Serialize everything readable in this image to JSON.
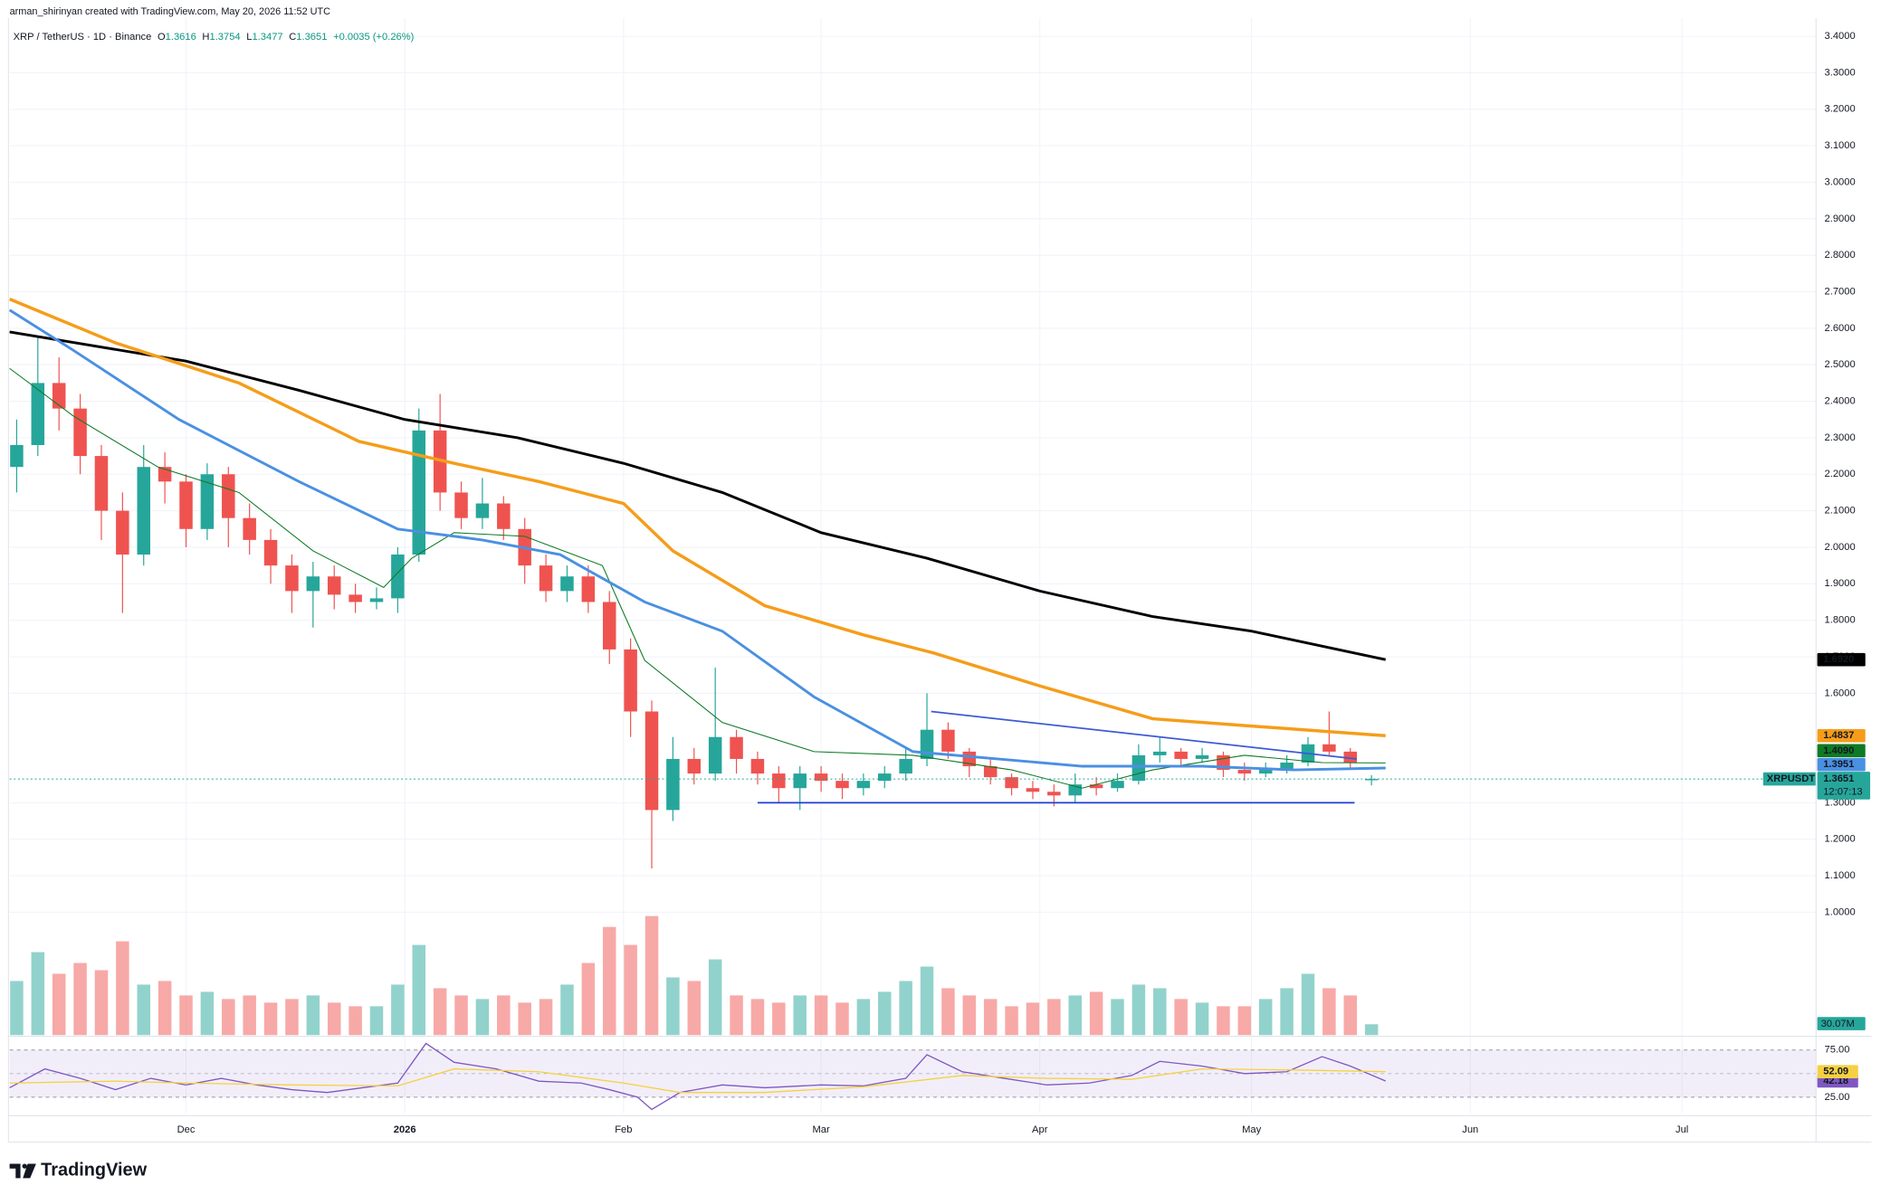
{
  "header": {
    "author_line": "arman_shirinyan created with TradingView.com, May 20, 2026 11:52 UTC",
    "symbol": "XRP / TetherUS · 1D · Binance",
    "ohlc": [
      {
        "key": "O",
        "value": "1.3616"
      },
      {
        "key": "H",
        "value": "1.3754"
      },
      {
        "key": "L",
        "value": "1.3477"
      },
      {
        "key": "C",
        "value": "1.3651"
      }
    ],
    "change": "+0.0035 (+0.26%)"
  },
  "chart_data": [
    {
      "type": "candlestick",
      "up_color": "#26a69a",
      "down_color": "#ef5350",
      "grid": true,
      "xlim": [
        -25,
        231
      ],
      "xticks": [
        {
          "value": 0,
          "label": "Dec"
        },
        {
          "value": 31,
          "label": "2026"
        },
        {
          "value": 62,
          "label": "Feb"
        },
        {
          "value": 90,
          "label": "Mar"
        },
        {
          "value": 121,
          "label": "Apr"
        },
        {
          "value": 151,
          "label": "May"
        },
        {
          "value": 182,
          "label": "Jun"
        },
        {
          "value": 212,
          "label": "Jul"
        }
      ],
      "ylim": [
        0.66,
        3.45
      ],
      "yticks": [
        {
          "value": 1.0,
          "label": "1.0000"
        },
        {
          "value": 1.1,
          "label": "1.1000"
        },
        {
          "value": 1.2,
          "label": "1.2000"
        },
        {
          "value": 1.3,
          "label": "1.3000"
        },
        {
          "value": 1.6,
          "label": "1.6000"
        },
        {
          "value": 1.7,
          "label": "1.7000"
        },
        {
          "value": 1.8,
          "label": "1.8000"
        },
        {
          "value": 1.9,
          "label": "1.9000"
        },
        {
          "value": 2.0,
          "label": "2.0000"
        },
        {
          "value": 2.1,
          "label": "2.1000"
        },
        {
          "value": 2.2,
          "label": "2.2000"
        },
        {
          "value": 2.3,
          "label": "2.3000"
        },
        {
          "value": 2.4,
          "label": "2.4000"
        },
        {
          "value": 2.5,
          "label": "2.5000"
        },
        {
          "value": 2.6,
          "label": "2.6000"
        },
        {
          "value": 2.7,
          "label": "2.7000"
        },
        {
          "value": 2.8,
          "label": "2.8000"
        },
        {
          "value": 2.9,
          "label": "2.9000"
        },
        {
          "value": 3.0,
          "label": "3.0000"
        },
        {
          "value": 3.1,
          "label": "3.1000"
        },
        {
          "value": 3.2,
          "label": "3.2000"
        },
        {
          "value": 3.3,
          "label": "3.3000"
        },
        {
          "value": 3.4,
          "label": "3.4000"
        }
      ],
      "x": [
        -24,
        -21,
        -18,
        -15,
        -12,
        -9,
        -6,
        -3,
        0,
        3,
        6,
        9,
        12,
        15,
        18,
        21,
        24,
        27,
        30,
        33,
        36,
        39,
        42,
        45,
        48,
        51,
        54,
        57,
        60,
        63,
        66,
        69,
        72,
        75,
        78,
        81,
        84,
        87,
        90,
        93,
        96,
        99,
        102,
        105,
        108,
        111,
        114,
        117,
        120,
        123,
        126,
        129,
        132,
        135,
        138,
        141,
        144,
        147,
        150,
        153,
        156,
        159,
        162,
        165,
        168
      ],
      "open": [
        2.22,
        2.28,
        2.45,
        2.38,
        2.25,
        2.1,
        1.98,
        2.22,
        2.18,
        2.05,
        2.2,
        2.08,
        2.02,
        1.95,
        1.88,
        1.92,
        1.87,
        1.85,
        1.86,
        1.98,
        2.32,
        2.15,
        2.08,
        2.12,
        2.05,
        1.95,
        1.88,
        1.92,
        1.85,
        1.72,
        1.55,
        1.28,
        1.42,
        1.38,
        1.48,
        1.42,
        1.38,
        1.34,
        1.38,
        1.36,
        1.34,
        1.36,
        1.38,
        1.42,
        1.5,
        1.44,
        1.4,
        1.37,
        1.34,
        1.33,
        1.32,
        1.35,
        1.34,
        1.36,
        1.43,
        1.44,
        1.42,
        1.43,
        1.39,
        1.38,
        1.39,
        1.41,
        1.46,
        1.44,
        1.3616
      ],
      "high": [
        2.35,
        2.58,
        2.52,
        2.42,
        2.28,
        2.15,
        2.28,
        2.26,
        2.2,
        2.23,
        2.22,
        2.12,
        2.05,
        1.98,
        1.96,
        1.95,
        1.9,
        1.89,
        2.0,
        2.38,
        2.42,
        2.18,
        2.19,
        2.14,
        2.08,
        1.98,
        1.95,
        1.95,
        1.88,
        1.75,
        1.58,
        1.48,
        1.45,
        1.67,
        1.5,
        1.44,
        1.4,
        1.4,
        1.4,
        1.38,
        1.38,
        1.4,
        1.45,
        1.6,
        1.52,
        1.45,
        1.42,
        1.38,
        1.36,
        1.35,
        1.38,
        1.37,
        1.38,
        1.46,
        1.48,
        1.45,
        1.45,
        1.44,
        1.41,
        1.41,
        1.43,
        1.48,
        1.55,
        1.45,
        1.3754
      ],
      "low": [
        2.15,
        2.25,
        2.32,
        2.2,
        2.02,
        1.82,
        1.95,
        2.12,
        2.0,
        2.02,
        2.0,
        1.98,
        1.9,
        1.82,
        1.78,
        1.83,
        1.82,
        1.83,
        1.82,
        1.96,
        2.1,
        2.05,
        2.05,
        2.02,
        1.9,
        1.85,
        1.85,
        1.82,
        1.68,
        1.48,
        1.12,
        1.25,
        1.35,
        1.36,
        1.38,
        1.35,
        1.3,
        1.28,
        1.33,
        1.31,
        1.32,
        1.34,
        1.36,
        1.4,
        1.42,
        1.37,
        1.35,
        1.32,
        1.31,
        1.29,
        1.3,
        1.32,
        1.33,
        1.35,
        1.41,
        1.4,
        1.41,
        1.37,
        1.36,
        1.37,
        1.38,
        1.4,
        1.43,
        1.39,
        1.3477
      ],
      "close": [
        2.28,
        2.45,
        2.38,
        2.25,
        2.1,
        1.98,
        2.22,
        2.18,
        2.05,
        2.2,
        2.08,
        2.02,
        1.95,
        1.88,
        1.92,
        1.87,
        1.85,
        1.86,
        1.98,
        2.32,
        2.15,
        2.08,
        2.12,
        2.05,
        1.95,
        1.88,
        1.92,
        1.85,
        1.72,
        1.55,
        1.28,
        1.42,
        1.38,
        1.48,
        1.42,
        1.38,
        1.34,
        1.38,
        1.36,
        1.34,
        1.36,
        1.38,
        1.42,
        1.5,
        1.44,
        1.4,
        1.37,
        1.34,
        1.33,
        1.32,
        1.35,
        1.34,
        1.36,
        1.43,
        1.44,
        1.42,
        1.43,
        1.39,
        1.38,
        1.39,
        1.41,
        1.46,
        1.44,
        1.41,
        1.3651
      ],
      "volume": {
        "values": [
          150,
          230,
          170,
          200,
          180,
          260,
          140,
          150,
          110,
          120,
          100,
          110,
          90,
          100,
          110,
          90,
          80,
          80,
          140,
          250,
          130,
          110,
          100,
          110,
          90,
          100,
          140,
          200,
          300,
          250,
          330,
          160,
          150,
          210,
          110,
          100,
          90,
          110,
          110,
          90,
          100,
          120,
          150,
          190,
          130,
          110,
          100,
          80,
          90,
          100,
          110,
          120,
          100,
          140,
          130,
          100,
          90,
          80,
          80,
          100,
          130,
          170,
          130,
          110,
          30.07
        ],
        "value_labels": [
          null,
          null,
          null,
          null,
          null,
          null,
          null,
          null,
          null,
          null,
          null,
          null,
          null,
          null,
          null,
          null,
          null,
          null,
          null,
          null,
          null,
          null,
          null,
          null,
          null,
          null,
          null,
          null,
          null,
          null,
          null,
          null,
          null,
          null,
          null,
          null,
          null,
          null,
          null,
          null,
          null,
          null,
          null,
          null,
          null,
          null,
          null,
          null,
          null,
          null,
          null,
          null,
          null,
          null,
          null,
          null,
          null,
          null,
          null,
          null,
          null,
          null,
          null,
          null,
          "30.07M"
        ]
      },
      "series": [
        {
          "color": "#000000",
          "width": 2.2,
          "x": [
            -25,
            0,
            16,
            31,
            47,
            62,
            76,
            90,
            105,
            121,
            137,
            151,
            170
          ],
          "values": [
            2.59,
            2.51,
            2.43,
            2.35,
            2.3,
            2.23,
            2.15,
            2.04,
            1.97,
            1.88,
            1.81,
            1.77,
            1.692
          ],
          "value_labels": [
            null,
            null,
            null,
            null,
            null,
            null,
            null,
            null,
            null,
            null,
            null,
            null,
            "1.6920"
          ]
        },
        {
          "color": "#f59d1a",
          "width": 2.6,
          "x": [
            -25,
            -10,
            7.5,
            24.5,
            38,
            50,
            62,
            69,
            82,
            96,
            106,
            121,
            137,
            151,
            170
          ],
          "values": [
            2.68,
            2.56,
            2.45,
            2.29,
            2.23,
            2.18,
            2.12,
            1.99,
            1.84,
            1.76,
            1.71,
            1.62,
            1.53,
            1.51,
            1.4837
          ],
          "value_labels": [
            null,
            null,
            null,
            null,
            null,
            null,
            null,
            null,
            null,
            null,
            null,
            null,
            null,
            null,
            "1.4837"
          ]
        },
        {
          "color": "#0e7a24",
          "width": 0.8,
          "x": [
            -25,
            -16,
            -4,
            7.5,
            18,
            28,
            32,
            38,
            48,
            59,
            65,
            76,
            89,
            103,
            117,
            127,
            137,
            150,
            161,
            170
          ],
          "values": [
            2.49,
            2.36,
            2.22,
            2.15,
            1.99,
            1.89,
            1.97,
            2.04,
            2.03,
            1.95,
            1.69,
            1.52,
            1.44,
            1.43,
            1.39,
            1.34,
            1.39,
            1.43,
            1.41,
            1.409
          ],
          "value_labels": [
            null,
            null,
            null,
            null,
            null,
            null,
            null,
            null,
            null,
            null,
            null,
            null,
            null,
            null,
            null,
            null,
            null,
            null,
            null,
            "1.4090"
          ]
        },
        {
          "color": "#4a90e2",
          "width": 2.2,
          "x": [
            -25,
            -16,
            -1,
            16,
            30,
            42,
            53,
            65,
            76,
            89,
            103,
            115,
            127,
            144,
            157,
            170
          ],
          "values": [
            2.65,
            2.54,
            2.35,
            2.18,
            2.05,
            2.02,
            1.98,
            1.85,
            1.77,
            1.59,
            1.44,
            1.42,
            1.4,
            1.4,
            1.39,
            1.3951
          ],
          "value_labels": [
            null,
            null,
            null,
            null,
            null,
            null,
            null,
            null,
            null,
            null,
            null,
            null,
            null,
            null,
            null,
            "1.3951"
          ]
        }
      ],
      "drawings": [
        {
          "color": "#3c5ad6",
          "x": [
            105.6,
            165.9
          ],
          "values": [
            1.55,
            1.42
          ]
        },
        {
          "color": "#1c3fd6",
          "x": [
            81,
            165.6
          ],
          "values": [
            1.3,
            1.3
          ]
        }
      ],
      "last_price": {
        "symbol": "XRPUSDT",
        "value_label": "1.3651",
        "countdown": "12:07:13",
        "color": "#26a69a"
      }
    },
    {
      "type": "line",
      "ylim": [
        8,
        87
      ],
      "yticks": [
        {
          "value": 75,
          "label": "75.00"
        },
        {
          "value": 25,
          "label": "25.00"
        }
      ],
      "midline": 50,
      "band_color": "#7e57c2",
      "series": [
        {
          "color": "#7e57c2",
          "width": 1,
          "x": [
            -25,
            -20,
            -15,
            -10,
            -5,
            0,
            5,
            10,
            15,
            20,
            25,
            30,
            34,
            38,
            44,
            50,
            56,
            60,
            64,
            66,
            70,
            76,
            82,
            90,
            96,
            102,
            105,
            110,
            116,
            122,
            128,
            134,
            138,
            144,
            150,
            156,
            161,
            165,
            170
          ],
          "values": [
            35,
            55,
            45,
            33,
            45,
            38,
            45,
            38,
            33,
            30,
            35,
            40,
            82,
            62,
            55,
            42,
            40,
            33,
            25,
            12,
            30,
            38,
            35,
            38,
            37,
            45,
            70,
            52,
            45,
            38,
            40,
            48,
            63,
            58,
            50,
            52,
            68,
            58,
            42.18
          ],
          "value_labels": [
            null,
            null,
            null,
            null,
            null,
            null,
            null,
            null,
            null,
            null,
            null,
            null,
            null,
            null,
            null,
            null,
            null,
            null,
            null,
            null,
            null,
            null,
            null,
            null,
            null,
            null,
            null,
            null,
            null,
            null,
            null,
            null,
            null,
            null,
            null,
            null,
            null,
            null,
            "42.18"
          ]
        },
        {
          "color": "#f5d142",
          "width": 1,
          "x": [
            -25,
            -10,
            0,
            15,
            30,
            38,
            50,
            62,
            70,
            82,
            96,
            110,
            122,
            134,
            144,
            156,
            170
          ],
          "values": [
            40,
            42,
            40,
            38,
            37,
            55,
            52,
            40,
            30,
            30,
            36,
            48,
            45,
            44,
            55,
            54,
            52.09
          ],
          "value_labels": [
            null,
            null,
            null,
            null,
            null,
            null,
            null,
            null,
            null,
            null,
            null,
            null,
            null,
            null,
            null,
            null,
            "52.09"
          ]
        }
      ]
    }
  ],
  "footer": {
    "brand": "TradingView"
  }
}
